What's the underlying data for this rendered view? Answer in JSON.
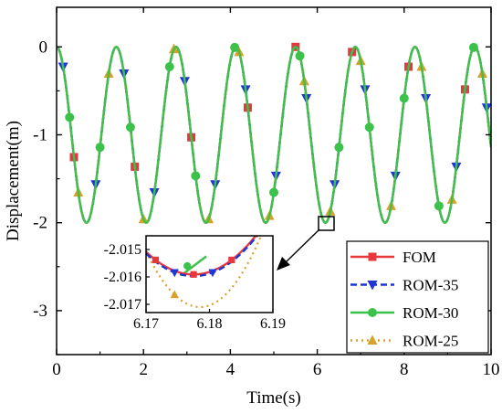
{
  "chart_data": {
    "type": "line",
    "title": "",
    "xlabel": "Time(s)",
    "ylabel": "Displacement(m)",
    "xlim": [
      0,
      10
    ],
    "ylim": [
      -3.5,
      0.45
    ],
    "xticks": [
      0,
      2,
      4,
      6,
      8,
      10
    ],
    "yticks": [
      0,
      -1,
      -2,
      -3
    ],
    "grid": false,
    "legend_position": "bottom-right",
    "signal": {
      "mean": -1.0,
      "amplitude": 1.0,
      "period": 1.375
    },
    "series": [
      {
        "name": "FOM",
        "color": "#e8383d",
        "line_style": "solid",
        "marker": "square",
        "marker_times": [
          0.4,
          1.8,
          3.1,
          4.4,
          5.5,
          6.8,
          8.1,
          9.4
        ]
      },
      {
        "name": "ROM-35",
        "color": "#1f35d6",
        "line_style": "dashed",
        "marker": "triangle-down",
        "marker_times": [
          0.15,
          0.9,
          1.55,
          2.25,
          2.95,
          3.65,
          4.35,
          5.05,
          5.75,
          6.4,
          7.1,
          7.8,
          8.5,
          9.2,
          9.9
        ]
      },
      {
        "name": "ROM-30",
        "color": "#3cc24a",
        "line_style": "solid",
        "marker": "circle",
        "marker_times": [
          0.3,
          1.0,
          1.7,
          2.6,
          3.2,
          4.1,
          5.0,
          5.6,
          6.5,
          7.2,
          8.0,
          8.8,
          9.6
        ]
      },
      {
        "name": "ROM-25",
        "color": "#d7a12b",
        "line_style": "dotted",
        "marker": "triangle-up",
        "marker_times": [
          0.5,
          1.2,
          2.0,
          2.7,
          3.5,
          4.2,
          4.9,
          5.7,
          6.3,
          7.0,
          7.7,
          8.4,
          9.1,
          9.8
        ]
      }
    ],
    "inset": {
      "xlim": [
        6.17,
        6.19
      ],
      "ylim": [
        -2.0173,
        -2.0145
      ],
      "xticks": [
        6.17,
        6.18,
        6.19
      ],
      "yticks": [
        -2.015,
        -2.016,
        -2.017
      ],
      "xtick_labels": [
        "6.17",
        "6.18",
        "6.19"
      ],
      "ytick_labels": [
        "-2.015",
        "-2.016",
        "-2.017"
      ],
      "zoom_center": [
        6.25,
        -1.93
      ],
      "curves": {
        "FOM": {
          "a": 1.47e-05,
          "b": -2.01591,
          "x0": 6.1775
        },
        "ROM-35": {
          "a": 1.47e-05,
          "b": -2.01597,
          "x0": 6.1775
        },
        "ROM-25": {
          "a": 2.8e-05,
          "b": -2.0171,
          "x0": 6.1785
        }
      },
      "markers": {
        "FOM": [
          6.1715,
          6.1775,
          6.1835
        ],
        "ROM-35": [
          6.1745,
          6.1805
        ],
        "ROM-30": [
          6.1765
        ],
        "ROM-25": [
          6.1745,
          6.1905
        ]
      }
    }
  }
}
